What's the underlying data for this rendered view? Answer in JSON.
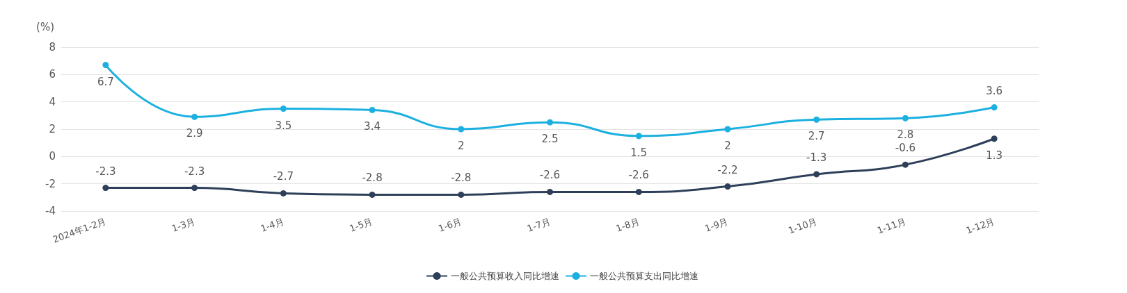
{
  "chart_data": {
    "type": "line",
    "ylabel": "(%)",
    "categories": [
      "2024年1-2月",
      "1-3月",
      "1-4月",
      "1-5月",
      "1-6月",
      "1-7月",
      "1-8月",
      "1-9月",
      "1-10月",
      "1-11月",
      "1-12月"
    ],
    "series": [
      {
        "name": "一般公共预算收入同比增速",
        "color": "#2e3f5a",
        "values": [
          -2.3,
          -2.3,
          -2.7,
          -2.8,
          -2.8,
          -2.6,
          -2.6,
          -2.2,
          -1.3,
          -0.6,
          1.3
        ]
      },
      {
        "name": "一般公共预算支出同比增速",
        "color": "#1cb0e0",
        "values": [
          6.7,
          2.9,
          3.5,
          3.4,
          2,
          2.5,
          1.5,
          2,
          2.7,
          2.8,
          3.6
        ]
      }
    ],
    "ylim": [
      -4,
      8
    ],
    "yticks": [
      -4,
      -2,
      0,
      2,
      4,
      6,
      8
    ],
    "grid": "y",
    "legend": "bottom",
    "marker": "circle",
    "line_style": "solid",
    "data_labels": true
  }
}
